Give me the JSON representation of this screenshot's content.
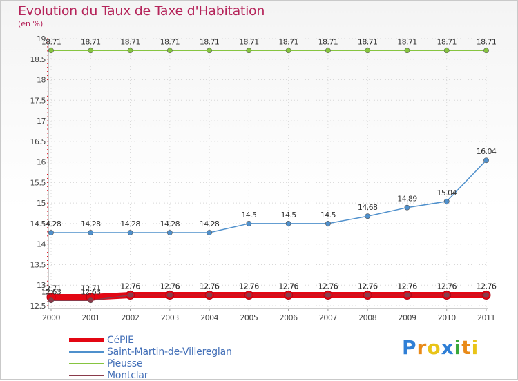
{
  "chart_data": {
    "type": "line",
    "title": "Evolution du Taux de Taxe d'Habitation",
    "ylabel": "(en %)",
    "xlabel": "",
    "x": [
      "2000",
      "2001",
      "2002",
      "2003",
      "2004",
      "2005",
      "2006",
      "2007",
      "2008",
      "2009",
      "2010",
      "2011"
    ],
    "ylim": [
      12.5,
      19
    ],
    "yticks": [
      "12.5",
      "13",
      "13.5",
      "14",
      "14.5",
      "15",
      "15.5",
      "16",
      "16.5",
      "17",
      "17.5",
      "18",
      "18.5",
      "19"
    ],
    "series": [
      {
        "name": "CéPIE",
        "color": "#e30613",
        "values": [
          12.71,
          12.71,
          12.76,
          12.76,
          12.76,
          12.76,
          12.76,
          12.76,
          12.76,
          12.76,
          12.76,
          12.76
        ],
        "labels": [
          "12.71",
          "12.71",
          "12.76",
          "12.76",
          "12.76",
          "12.76",
          "12.76",
          "12.76",
          "12.76",
          "12.76",
          "12.76",
          "12.76"
        ]
      },
      {
        "name": "Saint-Martin-de-Villereglan",
        "color": "#4f90cc",
        "values": [
          14.28,
          14.28,
          14.28,
          14.28,
          14.28,
          14.5,
          14.5,
          14.5,
          14.68,
          14.89,
          15.04,
          16.04
        ],
        "labels": [
          "14.28",
          "14.28",
          "14.28",
          "14.28",
          "14.28",
          "14.5",
          "14.5",
          "14.5",
          "14.68",
          "14.89",
          "15.04",
          "16.04"
        ]
      },
      {
        "name": "Pieusse",
        "color": "#86c440",
        "values": [
          18.71,
          18.71,
          18.71,
          18.71,
          18.71,
          18.71,
          18.71,
          18.71,
          18.71,
          18.71,
          18.71,
          18.71
        ],
        "labels": [
          "18.71",
          "18.71",
          "18.71",
          "18.71",
          "18.71",
          "18.71",
          "18.71",
          "18.71",
          "18.71",
          "18.71",
          "18.71",
          "18.71"
        ]
      },
      {
        "name": "Montclar",
        "color": "#8a3a4a",
        "values": [
          12.63,
          12.63,
          12.76,
          12.76,
          12.76,
          12.76,
          12.76,
          12.76,
          12.76,
          12.76,
          12.76,
          12.76
        ],
        "labels": [
          "12.63",
          "12.63",
          "12.76",
          "12.76",
          "12.76",
          "12.76",
          "12.76",
          "12.76",
          "12.76",
          "12.76",
          "12.76",
          "12.76"
        ]
      }
    ]
  },
  "legend": {
    "items": [
      {
        "label": "CéPIE",
        "color": "#e30613"
      },
      {
        "label": "Saint-Martin-de-Villereglan",
        "color": "#4f90cc"
      },
      {
        "label": "Pieusse",
        "color": "#86c440"
      },
      {
        "label": "Montclar",
        "color": "#8a3a4a"
      }
    ]
  },
  "logo": {
    "letters": [
      "P",
      "r",
      "o",
      "x",
      "i",
      "t",
      "i"
    ],
    "colors": [
      "#2f7fd6",
      "#e98a18",
      "#e9c418",
      "#2f7fd6",
      "#3aa83a",
      "#e98a18",
      "#e9c418"
    ]
  }
}
